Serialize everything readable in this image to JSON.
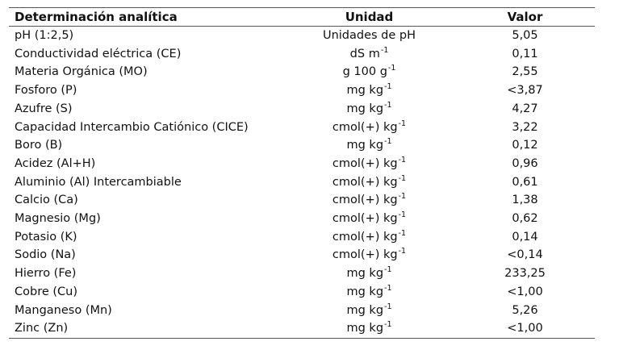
{
  "table": {
    "headers": {
      "determinacion": "Determinación analítica",
      "unidad": "Unidad",
      "valor": "Valor"
    },
    "rows": [
      {
        "name": "pH (1:2,5)",
        "unit": "Unidades de pH",
        "unit_sup": "",
        "value": "5,05"
      },
      {
        "name": "Conductividad eléctrica (CE)",
        "unit": "dS m",
        "unit_sup": "-1",
        "value": "0,11"
      },
      {
        "name": "Materia Orgánica (MO)",
        "unit": "g 100 g",
        "unit_sup": "-1",
        "value": "2,55"
      },
      {
        "name": "Fosforo (P)",
        "unit": "mg kg",
        "unit_sup": "-1",
        "value": "<3,87"
      },
      {
        "name": "Azufre (S)",
        "unit": "mg kg",
        "unit_sup": "-1",
        "value": "4,27"
      },
      {
        "name": "Capacidad Intercambio Catiónico (CICE)",
        "unit": "cmol(+) kg",
        "unit_sup": "-1",
        "value": "3,22"
      },
      {
        "name": "Boro (B)",
        "unit": "mg kg",
        "unit_sup": "-1",
        "value": "0,12"
      },
      {
        "name": "Acidez (Al+H)",
        "unit": "cmol(+) kg",
        "unit_sup": "-1",
        "value": "0,96"
      },
      {
        "name": "Aluminio (Al) Intercambiable",
        "unit": "cmol(+) kg",
        "unit_sup": "-1",
        "value": "0,61"
      },
      {
        "name": "Calcio (Ca)",
        "unit": "cmol(+) kg",
        "unit_sup": "-1",
        "value": "1,38"
      },
      {
        "name": "Magnesio (Mg)",
        "unit": "cmol(+) kg",
        "unit_sup": "-1",
        "value": "0,62"
      },
      {
        "name": "Potasio (K)",
        "unit": "cmol(+) kg",
        "unit_sup": "-1",
        "value": "0,14"
      },
      {
        "name": "Sodio (Na)",
        "unit": "cmol(+) kg",
        "unit_sup": "-1",
        "value": "<0,14"
      },
      {
        "name": "Hierro (Fe)",
        "unit": "mg kg",
        "unit_sup": "-1",
        "value": "233,25"
      },
      {
        "name": "Cobre (Cu)",
        "unit": "mg kg",
        "unit_sup": "-1",
        "value": "<1,00"
      },
      {
        "name": "Manganeso (Mn)",
        "unit": "mg kg",
        "unit_sup": "-1",
        "value": "5,26"
      },
      {
        "name": "Zinc (Zn)",
        "unit": "mg kg",
        "unit_sup": "-1",
        "value": "<1,00"
      }
    ]
  }
}
